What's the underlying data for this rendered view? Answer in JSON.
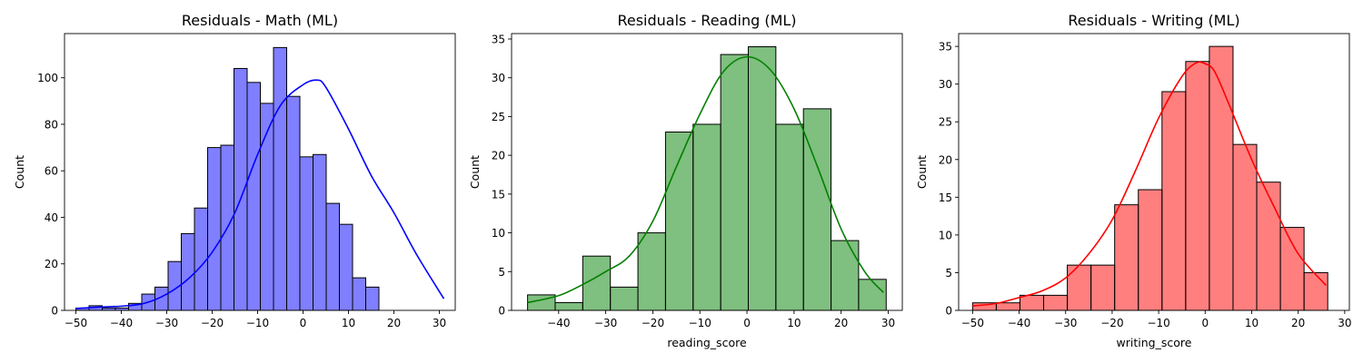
{
  "chart_data": [
    {
      "type": "bar",
      "title": "Residuals - Math (ML)",
      "xlabel": "",
      "ylabel": "Count",
      "color": "#0000ff",
      "xlim": [
        -52.5,
        33.5
      ],
      "ylim": [
        0,
        119
      ],
      "xticks": [
        -50,
        -40,
        -30,
        -20,
        -10,
        0,
        10,
        20,
        30
      ],
      "yticks": [
        0,
        20,
        40,
        60,
        80,
        100
      ],
      "bin_start": -50,
      "bin_width": 2.9,
      "values": [
        1,
        2,
        1,
        1,
        3,
        7,
        10,
        21,
        33,
        44,
        70,
        71,
        104,
        98,
        89,
        113,
        92,
        66,
        67,
        46,
        37,
        14,
        10
      ],
      "kde": {
        "x": [
          -50,
          -45,
          -40,
          -35,
          -30,
          -25,
          -20,
          -15,
          -10,
          -5,
          0,
          3,
          5,
          10,
          15,
          20,
          25,
          31
        ],
        "y": [
          0.8,
          1.4,
          1.8,
          3,
          7,
          14,
          25,
          42,
          67,
          88,
          97,
          99,
          96,
          78,
          58,
          42,
          24,
          5
        ]
      }
    },
    {
      "type": "bar",
      "title": "Residuals - Reading (ML)",
      "xlabel": "reading_score",
      "ylabel": "Count",
      "color": "#008000",
      "xlim": [
        -50,
        33
      ],
      "ylim": [
        0,
        35.7
      ],
      "xticks": [
        -40,
        -30,
        -20,
        -10,
        0,
        10,
        20,
        30
      ],
      "yticks": [
        0,
        5,
        10,
        15,
        20,
        25,
        30,
        35
      ],
      "bin_start": -46.6,
      "bin_width": 5.86,
      "values": [
        2,
        1,
        7,
        3,
        10,
        23,
        24,
        33,
        34,
        24,
        26,
        9,
        4
      ],
      "kde": {
        "x": [
          -46.6,
          -40,
          -35,
          -30,
          -25,
          -20,
          -15,
          -10,
          -5,
          0,
          5,
          10,
          15,
          20,
          25,
          29
        ],
        "y": [
          1,
          1.9,
          3.3,
          5,
          7,
          11.5,
          18.5,
          25.3,
          30.8,
          32.7,
          31,
          26,
          18.5,
          10.5,
          5,
          2.3
        ]
      }
    },
    {
      "type": "bar",
      "title": "Residuals - Writing (ML)",
      "xlabel": "writing_score",
      "ylabel": "Count",
      "color": "#ff0000",
      "xlim": [
        -53,
        31
      ],
      "ylim": [
        0,
        36.7
      ],
      "xticks": [
        -50,
        -40,
        -30,
        -20,
        -10,
        0,
        10,
        20,
        30
      ],
      "yticks": [
        0,
        5,
        10,
        15,
        20,
        25,
        30,
        35
      ],
      "bin_start": -50,
      "bin_width": 5.09,
      "values": [
        1,
        1,
        2,
        2,
        6,
        6,
        14,
        16,
        29,
        33,
        35,
        22,
        17,
        11,
        5
      ],
      "kde": {
        "x": [
          -50,
          -45,
          -40,
          -35,
          -30,
          -25,
          -20,
          -15,
          -10,
          -5,
          -2,
          0,
          2,
          5,
          10,
          15,
          20,
          26
        ],
        "y": [
          0.6,
          0.9,
          1.7,
          2.6,
          4.3,
          7.5,
          12,
          18.5,
          25.5,
          31,
          32.8,
          32.7,
          31.7,
          27.5,
          20,
          13.5,
          7.5,
          3.3
        ]
      }
    }
  ]
}
